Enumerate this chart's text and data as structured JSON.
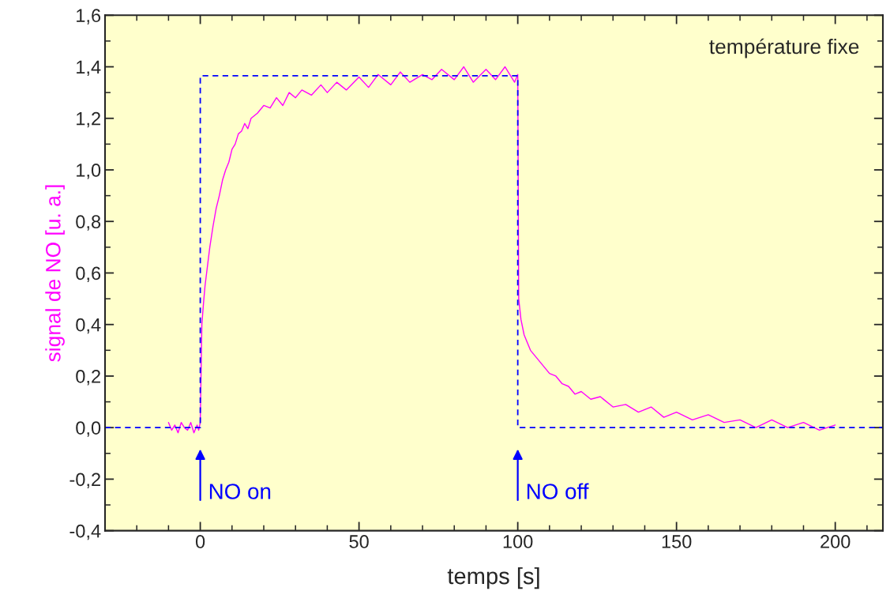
{
  "chart_data": {
    "type": "line",
    "xlabel": "temps [s]",
    "ylabel": "signal de NO [u. a.]",
    "xlim": [
      -30,
      215
    ],
    "ylim": [
      -0.4,
      1.6
    ],
    "xticks": [
      0,
      50,
      100,
      150,
      200
    ],
    "yticks": [
      {
        "value": -0.4,
        "label": "-0,4"
      },
      {
        "value": -0.2,
        "label": "-0,2"
      },
      {
        "value": 0,
        "label": "0,0"
      },
      {
        "value": 0.2,
        "label": "0,2"
      },
      {
        "value": 0.4,
        "label": "0,4"
      },
      {
        "value": 0.6,
        "label": "0,6"
      },
      {
        "value": 0.8,
        "label": "0,8"
      },
      {
        "value": 1.0,
        "label": "1,0"
      },
      {
        "value": 1.2,
        "label": "1,2"
      },
      {
        "value": 1.4,
        "label": "1,4"
      },
      {
        "value": 1.6,
        "label": "1,6"
      }
    ],
    "grid": false,
    "legend": false,
    "marker": "none",
    "series": [
      {
        "color": "#ff00ff",
        "line_style": "solid",
        "x": [
          -10,
          -9,
          -8,
          -7,
          -6,
          -5,
          -4,
          -3,
          -2,
          -1,
          -0.5,
          0,
          0.5,
          1,
          1.5,
          2,
          3,
          4,
          5,
          6,
          7,
          8,
          9,
          10,
          11,
          12,
          13,
          14,
          15,
          16,
          18,
          20,
          22,
          24,
          26,
          28,
          30,
          32,
          35,
          38,
          40,
          43,
          46,
          50,
          53,
          56,
          60,
          63,
          66,
          70,
          73,
          76,
          80,
          83,
          86,
          90,
          93,
          96,
          99,
          100,
          100.3,
          101,
          102,
          103,
          104,
          106,
          108,
          110,
          112,
          114,
          116,
          118,
          120,
          123,
          126,
          130,
          134,
          138,
          142,
          146,
          150,
          155,
          160,
          165,
          170,
          175,
          180,
          185,
          190,
          195,
          200
        ],
        "values": [
          0.02,
          -0.01,
          0.01,
          -0.02,
          0.02,
          0.0,
          -0.01,
          0.02,
          -0.02,
          0.01,
          -0.01,
          0.02,
          0.4,
          0.48,
          0.55,
          0.6,
          0.7,
          0.78,
          0.85,
          0.9,
          0.96,
          1.0,
          1.03,
          1.08,
          1.1,
          1.14,
          1.15,
          1.18,
          1.16,
          1.2,
          1.22,
          1.25,
          1.24,
          1.28,
          1.25,
          1.3,
          1.28,
          1.31,
          1.29,
          1.33,
          1.3,
          1.34,
          1.31,
          1.36,
          1.32,
          1.37,
          1.33,
          1.38,
          1.34,
          1.37,
          1.35,
          1.39,
          1.35,
          1.4,
          1.34,
          1.39,
          1.35,
          1.4,
          1.34,
          1.37,
          0.5,
          0.42,
          0.36,
          0.33,
          0.3,
          0.27,
          0.24,
          0.21,
          0.2,
          0.17,
          0.16,
          0.13,
          0.14,
          0.11,
          0.12,
          0.08,
          0.09,
          0.06,
          0.08,
          0.04,
          0.06,
          0.03,
          0.05,
          0.02,
          0.03,
          0.0,
          0.03,
          0.0,
          0.02,
          -0.01,
          0.01
        ]
      },
      {
        "color": "#0000ff",
        "line_style": "dashed",
        "x": [
          -30,
          0,
          0,
          100,
          100,
          215
        ],
        "values": [
          0,
          0,
          1.365,
          1.365,
          0,
          0
        ]
      }
    ],
    "annotations": [
      "NO on",
      "NO off",
      "température fixe"
    ]
  }
}
